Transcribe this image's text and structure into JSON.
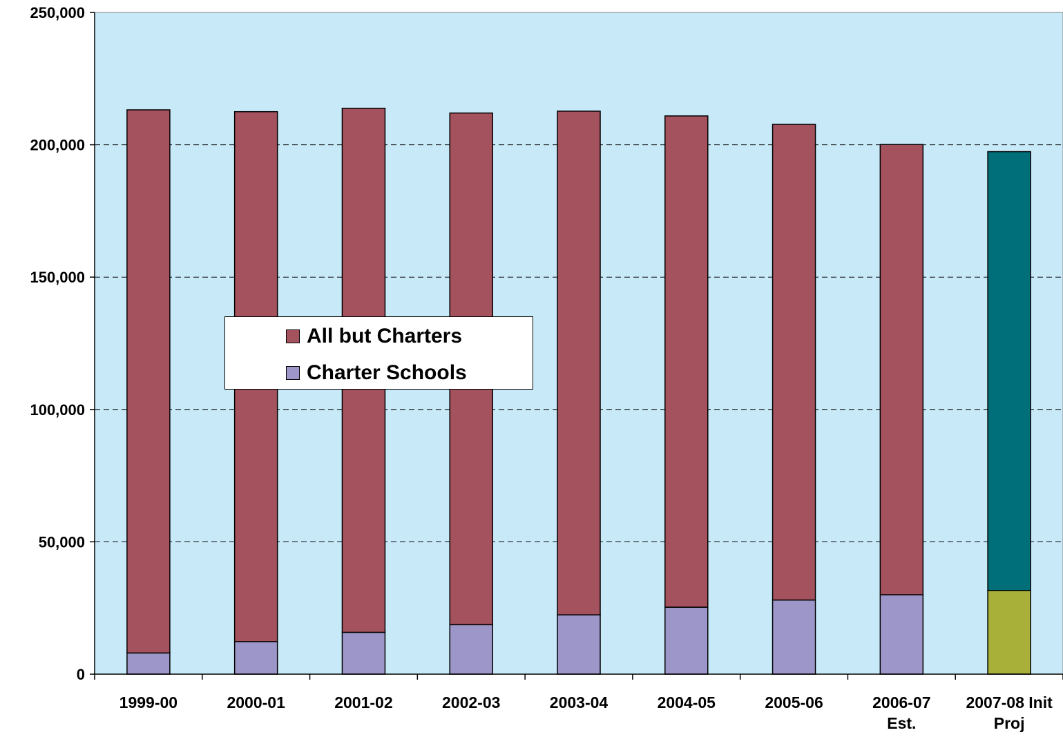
{
  "chart_data": {
    "type": "bar",
    "stacked": true,
    "categories": [
      [
        "1999-00"
      ],
      [
        "2000-01"
      ],
      [
        "2001-02"
      ],
      [
        "2002-03"
      ],
      [
        "2003-04"
      ],
      [
        "2004-05"
      ],
      [
        "2005-06"
      ],
      [
        "2006-07",
        "Est."
      ],
      [
        "2007-08 Init",
        "Proj"
      ]
    ],
    "series": [
      {
        "name": "Charter Schools",
        "color": "#9d96c8",
        "point_colors": [
          "#9d96c8",
          "#9d96c8",
          "#9d96c8",
          "#9d96c8",
          "#9d96c8",
          "#9d96c8",
          "#9d96c8",
          "#9d96c8",
          "#a9b03a"
        ],
        "values": [
          8000,
          12300,
          15800,
          18700,
          22400,
          25300,
          28000,
          30000,
          31600
        ]
      },
      {
        "name": "All but Charters",
        "color": "#a4525e",
        "point_colors": [
          "#a4525e",
          "#a4525e",
          "#a4525e",
          "#a4525e",
          "#a4525e",
          "#a4525e",
          "#a4525e",
          "#a4525e",
          "#006f7a"
        ],
        "values": [
          205200,
          200200,
          198000,
          193300,
          190300,
          185600,
          179700,
          170100,
          165800
        ]
      }
    ],
    "yaxis": {
      "ticks": [
        0,
        50000,
        100000,
        150000,
        200000,
        250000
      ],
      "tick_labels": [
        "0",
        "50,000",
        "100,000",
        "150,000",
        "200,000",
        "250,000"
      ],
      "ylim": [
        0,
        250000
      ]
    },
    "grid": "horizontal dashed",
    "plot_background": "#c8e9f8",
    "legend": {
      "placement": "center-left",
      "entries": [
        "All but Charters",
        "Charter Schools"
      ]
    },
    "title": "",
    "xlabel": "",
    "ylabel": ""
  }
}
